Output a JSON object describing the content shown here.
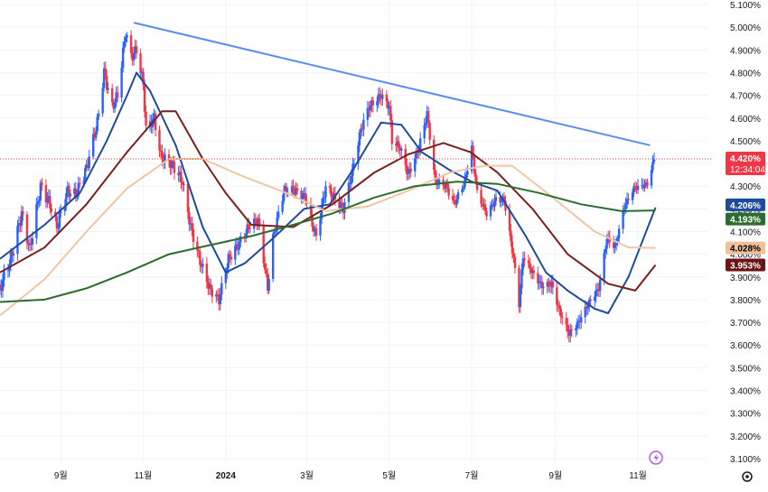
{
  "chart_data": {
    "type": "candlestick",
    "title": "",
    "xlabel": "",
    "ylabel": "",
    "y_axis_side": "right",
    "y_unit": "%",
    "ylim": [
      3.08,
      5.12
    ],
    "y_ticks": [
      "5.100%",
      "5.000%",
      "4.900%",
      "4.800%",
      "4.700%",
      "4.600%",
      "4.500%",
      "4.400%",
      "4.300%",
      "4.200%",
      "4.100%",
      "4.000%",
      "3.900%",
      "3.800%",
      "3.700%",
      "3.600%",
      "3.500%",
      "3.400%",
      "3.300%",
      "3.200%",
      "3.100%"
    ],
    "y_tick_values": [
      5.1,
      5.0,
      4.9,
      4.8,
      4.7,
      4.6,
      4.5,
      4.4,
      4.3,
      4.2,
      4.1,
      4.0,
      3.9,
      3.8,
      3.7,
      3.6,
      3.5,
      3.4,
      3.3,
      3.2,
      3.1
    ],
    "x_range": [
      "2023-07-18",
      "2024-11-15"
    ],
    "x_ticks": [
      {
        "label": "9월",
        "date": "2023-09-01"
      },
      {
        "label": "11월",
        "date": "2023-11-01"
      },
      {
        "label": "2024",
        "date": "2024-01-01"
      },
      {
        "label": "3월",
        "date": "2024-03-01"
      },
      {
        "label": "5월",
        "date": "2024-05-01"
      },
      {
        "label": "7월",
        "date": "2024-07-01"
      },
      {
        "label": "9월",
        "date": "2024-09-01"
      },
      {
        "label": "11월",
        "date": "2024-11-01"
      }
    ],
    "grid": true,
    "candles": {
      "up_color": "#2962ff",
      "down_color": "#f23645",
      "anchors": [
        [
          "2023-07-18",
          3.85
        ],
        [
          "2023-07-27",
          4.0
        ],
        [
          "2023-08-03",
          4.18
        ],
        [
          "2023-08-09",
          4.02
        ],
        [
          "2023-08-17",
          4.3
        ],
        [
          "2023-08-24",
          4.22
        ],
        [
          "2023-08-29",
          4.12
        ],
        [
          "2023-09-06",
          4.28
        ],
        [
          "2023-09-12",
          4.26
        ],
        [
          "2023-09-20",
          4.38
        ],
        [
          "2023-09-28",
          4.58
        ],
        [
          "2023-10-03",
          4.8
        ],
        [
          "2023-10-09",
          4.65
        ],
        [
          "2023-10-13",
          4.7
        ],
        [
          "2023-10-19",
          4.98
        ],
        [
          "2023-10-23",
          4.87
        ],
        [
          "2023-10-27",
          4.9
        ],
        [
          "2023-11-01",
          4.75
        ],
        [
          "2023-11-03",
          4.55
        ],
        [
          "2023-11-09",
          4.6
        ],
        [
          "2023-11-14",
          4.43
        ],
        [
          "2023-11-22",
          4.4
        ],
        [
          "2023-11-30",
          4.32
        ],
        [
          "2023-12-06",
          4.12
        ],
        [
          "2023-12-13",
          3.97
        ],
        [
          "2023-12-20",
          3.85
        ],
        [
          "2023-12-27",
          3.8
        ],
        [
          "2024-01-03",
          3.98
        ],
        [
          "2024-01-11",
          4.05
        ],
        [
          "2024-01-19",
          4.13
        ],
        [
          "2024-01-25",
          4.15
        ],
        [
          "2024-02-01",
          3.85
        ],
        [
          "2024-02-05",
          4.07
        ],
        [
          "2024-02-13",
          4.28
        ],
        [
          "2024-02-21",
          4.28
        ],
        [
          "2024-02-29",
          4.25
        ],
        [
          "2024-03-05",
          4.13
        ],
        [
          "2024-03-08",
          4.08
        ],
        [
          "2024-03-15",
          4.3
        ],
        [
          "2024-03-21",
          4.25
        ],
        [
          "2024-03-28",
          4.2
        ],
        [
          "2024-04-03",
          4.35
        ],
        [
          "2024-04-10",
          4.55
        ],
        [
          "2024-04-16",
          4.65
        ],
        [
          "2024-04-25",
          4.7
        ],
        [
          "2024-05-01",
          4.65
        ],
        [
          "2024-05-03",
          4.5
        ],
        [
          "2024-05-09",
          4.47
        ],
        [
          "2024-05-15",
          4.35
        ],
        [
          "2024-05-23",
          4.47
        ],
        [
          "2024-05-29",
          4.62
        ],
        [
          "2024-06-04",
          4.32
        ],
        [
          "2024-06-12",
          4.3
        ],
        [
          "2024-06-18",
          4.22
        ],
        [
          "2024-06-26",
          4.32
        ],
        [
          "2024-07-01",
          4.47
        ],
        [
          "2024-07-05",
          4.27
        ],
        [
          "2024-07-12",
          4.18
        ],
        [
          "2024-07-19",
          4.24
        ],
        [
          "2024-07-25",
          4.24
        ],
        [
          "2024-08-01",
          3.98
        ],
        [
          "2024-08-05",
          3.78
        ],
        [
          "2024-08-08",
          3.99
        ],
        [
          "2024-08-15",
          3.92
        ],
        [
          "2024-08-22",
          3.86
        ],
        [
          "2024-08-29",
          3.87
        ],
        [
          "2024-09-04",
          3.75
        ],
        [
          "2024-09-11",
          3.65
        ],
        [
          "2024-09-18",
          3.7
        ],
        [
          "2024-09-25",
          3.78
        ],
        [
          "2024-10-03",
          3.85
        ],
        [
          "2024-10-09",
          4.07
        ],
        [
          "2024-10-15",
          4.03
        ],
        [
          "2024-10-22",
          4.21
        ],
        [
          "2024-10-29",
          4.29
        ],
        [
          "2024-11-04",
          4.3
        ],
        [
          "2024-11-08",
          4.31
        ],
        [
          "2024-11-13",
          4.42
        ]
      ]
    },
    "moving_averages": [
      {
        "color": "#1e4b9e",
        "label": "4.206%",
        "label_bg": "#1e4b9e",
        "points": [
          [
            "2023-07-18",
            3.98
          ],
          [
            "2023-08-20",
            4.13
          ],
          [
            "2023-09-15",
            4.27
          ],
          [
            "2023-10-05",
            4.5
          ],
          [
            "2023-10-20",
            4.7
          ],
          [
            "2023-10-27",
            4.8
          ],
          [
            "2023-11-06",
            4.72
          ],
          [
            "2023-11-25",
            4.48
          ],
          [
            "2023-12-15",
            4.12
          ],
          [
            "2024-01-01",
            3.92
          ],
          [
            "2024-01-15",
            3.96
          ],
          [
            "2024-02-05",
            4.07
          ],
          [
            "2024-02-28",
            4.2
          ],
          [
            "2024-03-18",
            4.22
          ],
          [
            "2024-04-05",
            4.38
          ],
          [
            "2024-04-25",
            4.58
          ],
          [
            "2024-05-10",
            4.57
          ],
          [
            "2024-05-25",
            4.45
          ],
          [
            "2024-06-15",
            4.37
          ],
          [
            "2024-07-01",
            4.32
          ],
          [
            "2024-07-20",
            4.28
          ],
          [
            "2024-08-10",
            4.08
          ],
          [
            "2024-08-25",
            3.92
          ],
          [
            "2024-09-10",
            3.84
          ],
          [
            "2024-09-30",
            3.76
          ],
          [
            "2024-10-10",
            3.74
          ],
          [
            "2024-10-25",
            3.9
          ],
          [
            "2024-11-14",
            4.206
          ]
        ]
      },
      {
        "color": "#7a1f1f",
        "label": "3.953%",
        "label_bg": "#6b1414",
        "points": [
          [
            "2023-07-18",
            3.92
          ],
          [
            "2023-08-20",
            4.03
          ],
          [
            "2023-09-20",
            4.22
          ],
          [
            "2023-10-20",
            4.45
          ],
          [
            "2023-11-15",
            4.63
          ],
          [
            "2023-11-25",
            4.63
          ],
          [
            "2023-12-15",
            4.42
          ],
          [
            "2024-01-01",
            4.27
          ],
          [
            "2024-01-20",
            4.13
          ],
          [
            "2024-02-20",
            4.12
          ],
          [
            "2024-03-20",
            4.22
          ],
          [
            "2024-04-20",
            4.36
          ],
          [
            "2024-05-15",
            4.44
          ],
          [
            "2024-06-10",
            4.49
          ],
          [
            "2024-06-30",
            4.45
          ],
          [
            "2024-07-20",
            4.36
          ],
          [
            "2024-08-15",
            4.2
          ],
          [
            "2024-09-10",
            4.0
          ],
          [
            "2024-10-10",
            3.87
          ],
          [
            "2024-10-30",
            3.84
          ],
          [
            "2024-11-14",
            3.953
          ]
        ]
      },
      {
        "color": "#f0c6a4",
        "label": "4.028%",
        "label_bg": "#f2c09a",
        "label_color": "#000000",
        "points": [
          [
            "2023-07-18",
            3.73
          ],
          [
            "2023-08-20",
            3.89
          ],
          [
            "2023-09-20",
            4.1
          ],
          [
            "2023-10-20",
            4.29
          ],
          [
            "2023-11-20",
            4.42
          ],
          [
            "2023-12-15",
            4.42
          ],
          [
            "2024-01-15",
            4.34
          ],
          [
            "2024-02-15",
            4.27
          ],
          [
            "2024-03-15",
            4.19
          ],
          [
            "2024-04-15",
            4.21
          ],
          [
            "2024-05-15",
            4.28
          ],
          [
            "2024-06-15",
            4.36
          ],
          [
            "2024-07-10",
            4.39
          ],
          [
            "2024-07-31",
            4.39
          ],
          [
            "2024-08-30",
            4.25
          ],
          [
            "2024-09-30",
            4.1
          ],
          [
            "2024-10-25",
            4.03
          ],
          [
            "2024-11-14",
            4.028
          ]
        ]
      },
      {
        "color": "#2e6b2e",
        "label": "4.193%",
        "label_bg": "#2e6b2e",
        "points": [
          [
            "2023-07-18",
            3.79
          ],
          [
            "2023-08-20",
            3.8
          ],
          [
            "2023-09-20",
            3.85
          ],
          [
            "2023-10-20",
            3.92
          ],
          [
            "2023-11-20",
            4.0
          ],
          [
            "2023-12-20",
            4.04
          ],
          [
            "2024-01-20",
            4.08
          ],
          [
            "2024-02-20",
            4.13
          ],
          [
            "2024-03-20",
            4.18
          ],
          [
            "2024-04-20",
            4.25
          ],
          [
            "2024-05-20",
            4.3
          ],
          [
            "2024-06-20",
            4.32
          ],
          [
            "2024-07-20",
            4.31
          ],
          [
            "2024-08-20",
            4.27
          ],
          [
            "2024-09-20",
            4.22
          ],
          [
            "2024-10-20",
            4.19
          ],
          [
            "2024-11-14",
            4.193
          ]
        ]
      }
    ],
    "trendline": {
      "color": "#5b8df0",
      "from": [
        "2023-10-25",
        5.02
      ],
      "to": [
        "2024-11-10",
        4.48
      ]
    },
    "last_price": {
      "value": 4.42,
      "label": "4.420%",
      "countdown": "12:34:04",
      "color": "#f23645"
    }
  },
  "ui": {
    "colors": {
      "grid": "#f0f3fa",
      "axis_text": "#131722",
      "background": "#ffffff",
      "lightning": "#b15ce0"
    },
    "icons": {
      "lightning": "lightning-icon",
      "settings": "gear-icon"
    }
  }
}
